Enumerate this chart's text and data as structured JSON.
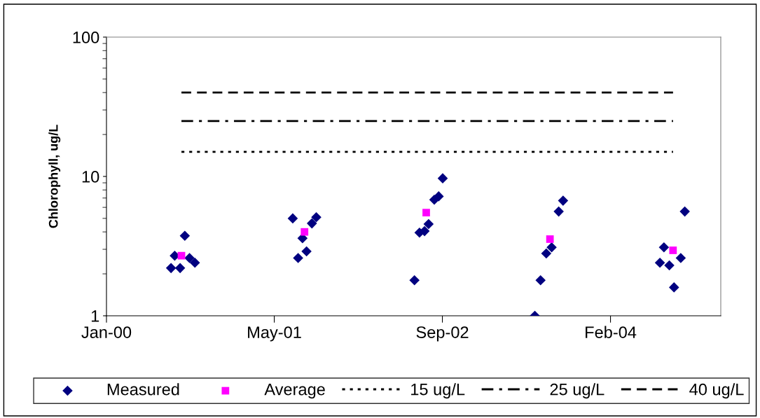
{
  "chart_data": {
    "type": "scatter",
    "ylabel": "Chlorophyll, ug/L",
    "log": "y",
    "ylim": [
      1,
      100
    ],
    "yticks": [
      1,
      10,
      100
    ],
    "xlim": [
      "2000-01-01",
      "2005-01-01"
    ],
    "xticks": [
      {
        "value": "2000-01-01",
        "label": "Jan-00"
      },
      {
        "value": "2001-05-14",
        "label": "May-01"
      },
      {
        "value": "2002-09-26",
        "label": "Sep-02"
      },
      {
        "value": "2004-02-08",
        "label": "Feb-04"
      }
    ],
    "grid": false,
    "legend": "bottom",
    "series": [
      {
        "name": "Measured",
        "marker": "diamond",
        "color": "#000080",
        "x": [
          "2000-07-11",
          "2000-08-07",
          "2000-07-22",
          "2000-08-21",
          "2000-09-04",
          "2000-09-20",
          "2001-07-08",
          "2001-07-24",
          "2001-08-06",
          "2001-08-18",
          "2001-09-03",
          "2001-09-16",
          "2002-07-05",
          "2002-07-20",
          "2002-08-04",
          "2002-08-16",
          "2002-09-02",
          "2002-09-15",
          "2002-09-27",
          "2003-06-28",
          "2003-07-15",
          "2003-08-01",
          "2003-08-17",
          "2003-09-07",
          "2003-09-20",
          "2004-07-04",
          "2004-07-16",
          "2004-08-01",
          "2004-08-15",
          "2004-09-04",
          "2004-09-16"
        ],
        "values": [
          2.2,
          2.2,
          2.7,
          3.75,
          2.6,
          2.4,
          5.0,
          2.6,
          3.6,
          2.9,
          4.6,
          5.1,
          1.8,
          3.95,
          4.05,
          4.55,
          6.8,
          7.2,
          9.7,
          1.0,
          1.8,
          2.8,
          3.1,
          5.6,
          6.7,
          2.4,
          3.1,
          2.3,
          1.6,
          2.6,
          5.6
        ]
      },
      {
        "name": "Average",
        "marker": "square",
        "color": "#ff00ff",
        "x": [
          "2000-08-11",
          "2001-08-12",
          "2002-08-09",
          "2003-08-12",
          "2004-08-12"
        ],
        "values": [
          2.7,
          4.0,
          5.5,
          3.55,
          2.95
        ]
      },
      {
        "name": "15 ug/L",
        "type": "line",
        "marker": "none",
        "line_style": "dotted",
        "color": "#000000",
        "x": [
          "2000-08-11",
          "2004-08-12"
        ],
        "values": [
          15,
          15
        ]
      },
      {
        "name": "25 ug/L",
        "type": "line",
        "marker": "none",
        "line_style": "dashdot",
        "color": "#000000",
        "x": [
          "2000-08-11",
          "2004-08-12"
        ],
        "values": [
          25,
          25
        ]
      },
      {
        "name": "40 ug/L",
        "type": "line",
        "marker": "none",
        "line_style": "dashed",
        "color": "#000000",
        "x": [
          "2000-08-11",
          "2004-08-12"
        ],
        "values": [
          40,
          40
        ]
      }
    ]
  }
}
